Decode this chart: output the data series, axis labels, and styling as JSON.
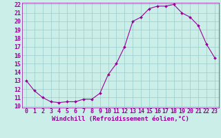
{
  "x": [
    0,
    1,
    2,
    3,
    4,
    5,
    6,
    7,
    8,
    9,
    10,
    11,
    12,
    13,
    14,
    15,
    16,
    17,
    18,
    19,
    20,
    21,
    22,
    23
  ],
  "y": [
    13,
    11.8,
    11.0,
    10.5,
    10.4,
    10.5,
    10.5,
    10.8,
    10.8,
    11.5,
    13.7,
    15.0,
    17.0,
    20.0,
    20.5,
    21.5,
    21.8,
    21.8,
    22.0,
    21.0,
    20.5,
    19.5,
    17.3,
    15.7
  ],
  "line_color": "#990099",
  "marker": "D",
  "markersize": 2.0,
  "linewidth": 0.8,
  "bg_color": "#cceee8",
  "grid_color": "#99cccc",
  "xlabel": "Windchill (Refroidissement éolien,°C)",
  "xlabel_color": "#990099",
  "xlabel_fontsize": 6.5,
  "tick_color": "#990099",
  "tick_fontsize": 6.0,
  "ylim": [
    10,
    22
  ],
  "xlim": [
    -0.5,
    23.5
  ],
  "yticks": [
    10,
    11,
    12,
    13,
    14,
    15,
    16,
    17,
    18,
    19,
    20,
    21,
    22
  ],
  "xticks": [
    0,
    1,
    2,
    3,
    4,
    5,
    6,
    7,
    8,
    9,
    10,
    11,
    12,
    13,
    14,
    15,
    16,
    17,
    18,
    19,
    20,
    21,
    22,
    23
  ]
}
